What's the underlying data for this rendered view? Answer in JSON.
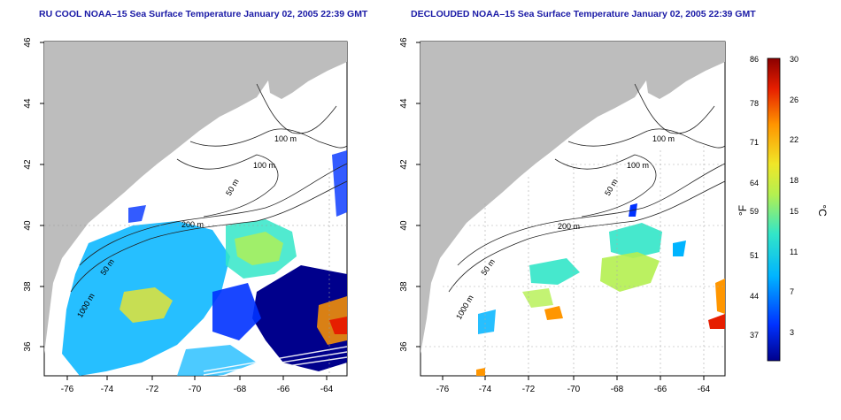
{
  "left_panel": {
    "title": "RU COOL NOAA–15 Sea Surface Temperature January 02, 2005 22:39 GMT",
    "x_ticks": [
      "-76",
      "-74",
      "-72",
      "-70",
      "-68",
      "-66",
      "-64"
    ],
    "y_ticks": [
      "36",
      "38",
      "40",
      "42",
      "44",
      "46"
    ],
    "isobath_labels": [
      "100 m",
      "100 m",
      "50 m",
      "200 m",
      "50 m",
      "1000 m"
    ]
  },
  "right_panel": {
    "title": "DECLOUDED NOAA–15 Sea Surface Temperature January 02, 2005 22:39 GMT",
    "x_ticks": [
      "-76",
      "-74",
      "-72",
      "-70",
      "-68",
      "-66",
      "-64"
    ],
    "y_ticks": [
      "36",
      "38",
      "40",
      "42",
      "44",
      "46"
    ],
    "isobath_labels": [
      "100 m",
      "100 m",
      "50 m",
      "200 m",
      "50 m",
      "1000 m"
    ]
  },
  "colorbar": {
    "fahrenheit_label": "°F",
    "celsius_label": "°C",
    "fahrenheit_ticks": [
      "86",
      "78",
      "71",
      "64",
      "59",
      "51",
      "44",
      "37"
    ],
    "celsius_ticks": [
      "30",
      "26",
      "22",
      "18",
      "15",
      "11",
      "7",
      "3"
    ],
    "colors": [
      "#00008c",
      "#0032ff",
      "#00b4ff",
      "#32e6c8",
      "#b4f050",
      "#f0e628",
      "#ff9600",
      "#e61e00",
      "#8c0000"
    ]
  },
  "map_colors": {
    "land": "#bdbdbd",
    "water_no_data": "#ffffff",
    "cloud_dark": "#000a96"
  }
}
